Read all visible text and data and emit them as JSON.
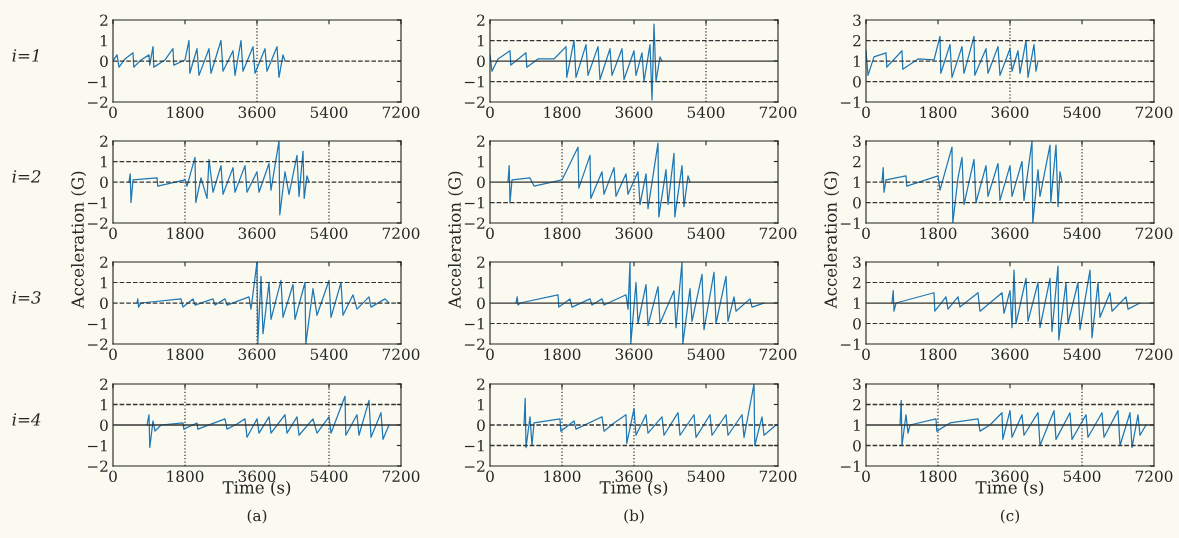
{
  "chart_data": [
    {
      "type": "line",
      "annotations": [
        "i=1"
      ],
      "xlim": [
        0,
        7200
      ],
      "xticks": [
        0,
        1800,
        3600,
        5400,
        7200
      ],
      "ylim": [
        -2,
        2
      ],
      "yticks": [
        -2,
        -1,
        0,
        1,
        2
      ],
      "grid": false,
      "marker": "none",
      "line_style": "solid",
      "ref_lines": [
        {
          "axis": "y",
          "value": 0,
          "line_style": "dashed",
          "color": "#333333"
        },
        {
          "axis": "x",
          "value": 3600,
          "line_style": "dotted",
          "color": "#333333"
        }
      ],
      "series": [
        {
          "color": "#1f77b4",
          "x": [
            0,
            100,
            150,
            300,
            500,
            520,
            700,
            900,
            920,
            1000,
            1020,
            1300,
            1500,
            1520,
            1800,
            1900,
            1920,
            2100,
            2150,
            2400,
            2450,
            2700,
            2750,
            3000,
            3050,
            3200,
            3250,
            3500,
            3550,
            3800,
            3850,
            4100,
            4150,
            4250,
            4300
          ],
          "values": [
            0,
            0.3,
            -0.3,
            0.1,
            0.4,
            -0.3,
            0.05,
            0.3,
            -0.2,
            0.7,
            -0.3,
            0.05,
            0.6,
            -0.2,
            0.05,
            1.0,
            -0.6,
            0.6,
            -0.7,
            0.6,
            -0.6,
            1.0,
            -0.5,
            0.5,
            -0.7,
            1.0,
            -0.5,
            0.7,
            -0.6,
            0.6,
            -0.5,
            0.7,
            -0.8,
            0.3,
            0
          ]
        }
      ]
    },
    {
      "type": "line",
      "xlim": [
        0,
        7200
      ],
      "xticks": [
        0,
        1800,
        3600,
        5400,
        7200
      ],
      "ylim": [
        -2,
        2
      ],
      "yticks": [
        -2,
        -1,
        0,
        1,
        2
      ],
      "grid": false,
      "marker": "none",
      "line_style": "solid",
      "ref_lines": [
        {
          "axis": "y",
          "value": 1,
          "line_style": "dashed",
          "color": "#333333"
        },
        {
          "axis": "y",
          "value": -1,
          "line_style": "dashed",
          "color": "#333333"
        },
        {
          "axis": "y",
          "value": 0,
          "line_style": "solid",
          "color": "#333333"
        },
        {
          "axis": "x",
          "value": 5400,
          "line_style": "dotted",
          "color": "#333333"
        }
      ],
      "series": [
        {
          "color": "#1f77b4",
          "x": [
            0,
            50,
            200,
            500,
            520,
            900,
            920,
            1200,
            1600,
            1900,
            1920,
            2100,
            2150,
            2400,
            2450,
            2700,
            2750,
            3000,
            3050,
            3300,
            3350,
            3600,
            3650,
            3800,
            3850,
            4000,
            4050,
            4100,
            4150,
            4250,
            4300
          ],
          "values": [
            0.3,
            -0.5,
            0.1,
            0.5,
            -0.2,
            0.4,
            -0.3,
            0.1,
            0.1,
            0.7,
            -0.8,
            1.0,
            -0.8,
            0.8,
            -0.7,
            0.7,
            -0.9,
            0.6,
            -0.7,
            0.6,
            -0.9,
            0.5,
            -0.7,
            0.4,
            -1.0,
            0.8,
            -1.9,
            1.8,
            -1.0,
            0.2,
            0
          ]
        }
      ]
    },
    {
      "type": "line",
      "xlim": [
        0,
        7200
      ],
      "xticks": [
        0,
        1800,
        3600,
        5400,
        7200
      ],
      "ylim": [
        -1,
        3
      ],
      "yticks": [
        -1,
        0,
        1,
        2,
        3
      ],
      "grid": false,
      "marker": "none",
      "line_style": "solid",
      "ref_lines": [
        {
          "axis": "y",
          "value": 2,
          "line_style": "dashed",
          "color": "#333333"
        },
        {
          "axis": "y",
          "value": 1,
          "line_style": "dashed",
          "color": "#333333"
        },
        {
          "axis": "y",
          "value": 0,
          "line_style": "dashed",
          "color": "#333333"
        },
        {
          "axis": "x",
          "value": 3600,
          "line_style": "dotted",
          "color": "#333333"
        }
      ],
      "series": [
        {
          "color": "#1f77b4",
          "x": [
            0,
            50,
            200,
            500,
            520,
            900,
            920,
            1300,
            1700,
            1850,
            1870,
            2100,
            2150,
            2400,
            2450,
            2700,
            2720,
            3000,
            3050,
            3300,
            3350,
            3600,
            3650,
            3800,
            3850,
            4000,
            4050,
            4200,
            4250,
            4300
          ],
          "values": [
            1.5,
            0.3,
            1.2,
            1.4,
            0.7,
            1.5,
            0.6,
            1.1,
            1.05,
            2.2,
            0.4,
            1.8,
            0.2,
            1.7,
            0.4,
            2.2,
            0.3,
            1.6,
            0.4,
            1.7,
            0.3,
            1.6,
            0.5,
            1.5,
            0.4,
            2.0,
            0.2,
            1.8,
            0.5,
            1.0
          ]
        }
      ]
    },
    {
      "type": "line",
      "annotations": [
        "i=2"
      ],
      "ylabel": "Acceleration (G)",
      "xlim": [
        0,
        7200
      ],
      "xticks": [
        0,
        1800,
        3600,
        5400,
        7200
      ],
      "ylim": [
        -2,
        2
      ],
      "yticks": [
        -2,
        -1,
        0,
        1,
        2
      ],
      "grid": false,
      "marker": "none",
      "line_style": "solid",
      "ref_lines": [
        {
          "axis": "y",
          "value": 1,
          "line_style": "dashed",
          "color": "#333333"
        },
        {
          "axis": "y",
          "value": 0,
          "line_style": "dashed",
          "color": "#333333"
        },
        {
          "axis": "x",
          "value": 1800,
          "line_style": "dotted",
          "color": "#333333"
        },
        {
          "axis": "x",
          "value": 5400,
          "line_style": "dotted",
          "color": "#333333"
        }
      ],
      "series": [
        {
          "color": "#1f77b4",
          "x": [
            400,
            430,
            450,
            500,
            1100,
            1120,
            1800,
            1850,
            2050,
            2070,
            2200,
            2350,
            2400,
            2500,
            2700,
            2750,
            3000,
            3050,
            3300,
            3350,
            3600,
            3650,
            3900,
            3950,
            4150,
            4170,
            4300,
            4400,
            4600,
            4650,
            4750,
            4780,
            4850,
            4900
          ],
          "values": [
            0,
            0.4,
            -1.0,
            0.1,
            0.2,
            -0.2,
            0.1,
            -0.2,
            1.2,
            -1.0,
            0.2,
            -0.8,
            1.1,
            -0.5,
            0.8,
            -0.6,
            0.7,
            -0.5,
            0.8,
            -0.5,
            0.5,
            -0.5,
            0.9,
            -0.4,
            2.0,
            -1.6,
            0.5,
            -0.6,
            1.3,
            -0.7,
            1.5,
            -0.8,
            0.3,
            0
          ]
        }
      ]
    },
    {
      "type": "line",
      "ylabel": "Acceleration (G)",
      "xlim": [
        0,
        7200
      ],
      "xticks": [
        0,
        1800,
        3600,
        5400,
        7200
      ],
      "ylim": [
        -2,
        2
      ],
      "yticks": [
        -2,
        -1,
        0,
        1,
        2
      ],
      "grid": false,
      "marker": "none",
      "line_style": "solid",
      "ref_lines": [
        {
          "axis": "y",
          "value": 0,
          "line_style": "solid",
          "color": "#333333"
        },
        {
          "axis": "y",
          "value": -1,
          "line_style": "dashed",
          "color": "#333333"
        },
        {
          "axis": "x",
          "value": 1800,
          "line_style": "dotted",
          "color": "#333333"
        },
        {
          "axis": "x",
          "value": 3600,
          "line_style": "dotted",
          "color": "#333333"
        }
      ],
      "series": [
        {
          "color": "#1f77b4",
          "x": [
            450,
            480,
            500,
            550,
            1000,
            1100,
            1800,
            2200,
            2220,
            2500,
            2520,
            2800,
            2850,
            3100,
            3150,
            3400,
            3450,
            3700,
            3750,
            3900,
            3950,
            4200,
            4220,
            4400,
            4450,
            4600,
            4620,
            4800,
            4850,
            4950,
            5000
          ],
          "values": [
            0,
            0.8,
            -1.0,
            0.1,
            0.2,
            -0.2,
            0.1,
            1.7,
            -0.3,
            1.3,
            -0.8,
            0.5,
            -0.6,
            0.7,
            -0.7,
            0.4,
            -0.6,
            0.5,
            -1.1,
            0.4,
            -1.3,
            1.9,
            -1.7,
            0.6,
            -1.1,
            1.4,
            -1.7,
            0.8,
            -1.2,
            0.3,
            0
          ]
        }
      ]
    },
    {
      "type": "line",
      "ylabel": "Acceleration (G)",
      "xlim": [
        0,
        7200
      ],
      "xticks": [
        0,
        1800,
        3600,
        5400,
        7200
      ],
      "ylim": [
        -1,
        3
      ],
      "yticks": [
        -1,
        0,
        1,
        2,
        3
      ],
      "grid": false,
      "marker": "none",
      "line_style": "solid",
      "ref_lines": [
        {
          "axis": "y",
          "value": 1,
          "line_style": "dashed",
          "color": "#333333"
        },
        {
          "axis": "y",
          "value": 0,
          "line_style": "dashed",
          "color": "#333333"
        },
        {
          "axis": "x",
          "value": 1800,
          "line_style": "dotted",
          "color": "#333333"
        },
        {
          "axis": "x",
          "value": 5400,
          "line_style": "dotted",
          "color": "#333333"
        }
      ],
      "series": [
        {
          "color": "#1f77b4",
          "x": [
            400,
            430,
            450,
            500,
            1000,
            1020,
            1800,
            1850,
            2150,
            2170,
            2300,
            2400,
            2450,
            2700,
            2750,
            3000,
            3050,
            3300,
            3350,
            3600,
            3650,
            3900,
            3950,
            4150,
            4170,
            4300,
            4350,
            4600,
            4620,
            4750,
            4800,
            4850,
            4900
          ],
          "values": [
            1.0,
            1.7,
            0.5,
            1.1,
            1.3,
            0.8,
            1.3,
            0.6,
            2.7,
            -1.0,
            1.2,
            2.2,
            -0.1,
            2.1,
            0.0,
            1.8,
            0.3,
            1.9,
            0.1,
            1.8,
            0.3,
            2.0,
            0.1,
            3.0,
            -1.0,
            1.6,
            0.3,
            2.8,
            0.0,
            2.8,
            -0.2,
            1.5,
            1.0
          ]
        }
      ]
    },
    {
      "type": "line",
      "annotations": [
        "i=3"
      ],
      "xlim": [
        0,
        7200
      ],
      "xticks": [
        0,
        1800,
        3600,
        5400,
        7200
      ],
      "ylim": [
        -2,
        2
      ],
      "yticks": [
        -2,
        -1,
        0,
        1,
        2
      ],
      "grid": false,
      "marker": "none",
      "line_style": "solid",
      "ref_lines": [
        {
          "axis": "y",
          "value": 1,
          "line_style": "dashed",
          "color": "#333333"
        },
        {
          "axis": "y",
          "value": 0,
          "line_style": "dashed",
          "color": "#333333"
        },
        {
          "axis": "x",
          "value": 3600,
          "line_style": "dotted",
          "color": "#333333"
        }
      ],
      "series": [
        {
          "color": "#1f77b4",
          "x": [
            600,
            620,
            640,
            700,
            1700,
            1750,
            2000,
            2050,
            2500,
            2550,
            2800,
            2850,
            3400,
            3450,
            3600,
            3620,
            3700,
            3750,
            3900,
            3950,
            4200,
            4250,
            4500,
            4550,
            4800,
            4820,
            5000,
            5100,
            5400,
            5450,
            5700,
            5750,
            6000,
            6100,
            6400,
            6450,
            6800,
            6900
          ],
          "values": [
            0,
            0.2,
            -0.2,
            0,
            0.2,
            -0.2,
            0.2,
            -0.1,
            0.2,
            -0.1,
            0.2,
            -0.1,
            0.3,
            -0.3,
            2.0,
            -2.0,
            1.3,
            -1.5,
            1.0,
            -0.8,
            1.1,
            -0.7,
            0.9,
            -0.8,
            1.0,
            -2.0,
            0.7,
            -0.6,
            1.1,
            -0.7,
            1.0,
            -0.6,
            0.4,
            -0.3,
            0.3,
            -0.2,
            0.2,
            0
          ]
        }
      ]
    },
    {
      "type": "line",
      "xlim": [
        0,
        7200
      ],
      "xticks": [
        0,
        1800,
        3600,
        5400,
        7200
      ],
      "ylim": [
        -2,
        2
      ],
      "yticks": [
        -2,
        -1,
        0,
        1,
        2
      ],
      "grid": false,
      "marker": "none",
      "line_style": "solid",
      "ref_lines": [
        {
          "axis": "y",
          "value": 0,
          "line_style": "solid",
          "color": "#333333"
        },
        {
          "axis": "y",
          "value": -1,
          "line_style": "dashed",
          "color": "#333333"
        }
      ],
      "series": [
        {
          "color": "#1f77b4",
          "x": [
            650,
            680,
            700,
            750,
            1700,
            1720,
            2000,
            2050,
            2500,
            2550,
            2800,
            2850,
            3400,
            3450,
            3500,
            3520,
            3650,
            3700,
            3900,
            3950,
            4200,
            4250,
            4600,
            4650,
            4800,
            4820,
            5000,
            5050,
            5300,
            5350,
            5600,
            5650,
            5900,
            5950,
            6100,
            6150,
            6500,
            6550,
            6850
          ],
          "values": [
            0,
            0.3,
            -0.1,
            0,
            0.4,
            -0.2,
            0.2,
            -0.2,
            0.2,
            -0.1,
            0.2,
            -0.1,
            0.4,
            -0.3,
            2.0,
            -2.0,
            1.0,
            -1.0,
            0.9,
            -1.1,
            0.8,
            -1.0,
            0.6,
            -1.2,
            2.0,
            -2.0,
            0.7,
            -0.9,
            1.4,
            -1.3,
            1.5,
            -1.0,
            1.3,
            -0.9,
            0.3,
            -0.4,
            0.2,
            -0.2,
            0
          ]
        }
      ]
    },
    {
      "type": "line",
      "xlim": [
        0,
        7200
      ],
      "xticks": [
        0,
        1800,
        3600,
        5400,
        7200
      ],
      "ylim": [
        -1,
        3
      ],
      "yticks": [
        -1,
        0,
        1,
        2,
        3
      ],
      "grid": false,
      "marker": "none",
      "line_style": "solid",
      "ref_lines": [
        {
          "axis": "y",
          "value": 2,
          "line_style": "dashed",
          "color": "#333333"
        },
        {
          "axis": "y",
          "value": 1,
          "line_style": "solid",
          "color": "#333333"
        },
        {
          "axis": "y",
          "value": 0,
          "line_style": "dashed",
          "color": "#333333"
        }
      ],
      "series": [
        {
          "color": "#1f77b4",
          "x": [
            650,
            680,
            700,
            750,
            1700,
            1720,
            2000,
            2050,
            2300,
            2350,
            2800,
            2850,
            3400,
            3450,
            3600,
            3650,
            3700,
            3750,
            4000,
            4050,
            4300,
            4350,
            4600,
            4650,
            4800,
            4820,
            5000,
            5050,
            5300,
            5350,
            5600,
            5650,
            5800,
            5850,
            6100,
            6150,
            6500,
            6550,
            6850
          ],
          "values": [
            1.0,
            1.6,
            0.6,
            1.0,
            1.5,
            0.6,
            1.3,
            0.7,
            1.3,
            0.8,
            1.5,
            0.6,
            1.5,
            0.5,
            1.6,
            -0.2,
            2.6,
            0.0,
            2.2,
            0.1,
            2.0,
            -0.2,
            2.2,
            -0.4,
            2.8,
            -0.8,
            2.0,
            0.0,
            2.0,
            -0.3,
            2.6,
            -0.7,
            2.0,
            0.3,
            1.5,
            0.6,
            1.3,
            0.7,
            1.0
          ]
        }
      ]
    },
    {
      "type": "line",
      "annotations": [
        "i=4",
        "(a)"
      ],
      "xlabel": "Time (s)",
      "xlim": [
        0,
        7200
      ],
      "xticks": [
        0,
        1800,
        3600,
        5400,
        7200
      ],
      "ylim": [
        -2,
        2
      ],
      "yticks": [
        -2,
        -1,
        0,
        1,
        2
      ],
      "grid": false,
      "marker": "none",
      "line_style": "solid",
      "ref_lines": [
        {
          "axis": "y",
          "value": 1,
          "line_style": "dashed",
          "color": "#333333"
        },
        {
          "axis": "y",
          "value": 0,
          "line_style": "solid",
          "color": "#333333"
        },
        {
          "axis": "x",
          "value": 1800,
          "line_style": "dotted",
          "color": "#333333"
        },
        {
          "axis": "x",
          "value": 5400,
          "line_style": "dotted",
          "color": "#333333"
        }
      ],
      "series": [
        {
          "color": "#1f77b4",
          "x": [
            850,
            900,
            920,
            1000,
            1050,
            1200,
            1750,
            1770,
            2100,
            2120,
            2800,
            2850,
            3100,
            3300,
            3350,
            3600,
            3650,
            3900,
            3950,
            4300,
            4350,
            4600,
            4650,
            5000,
            5100,
            5400,
            5450,
            5800,
            5820,
            6100,
            6150,
            6400,
            6450,
            6700,
            6750,
            6900
          ],
          "values": [
            0,
            0.5,
            -1.1,
            0.2,
            -0.3,
            0,
            0.1,
            -0.2,
            0.1,
            -0.2,
            0.3,
            -0.2,
            0.05,
            0.3,
            -0.6,
            0.3,
            -0.4,
            0.4,
            -0.4,
            0.5,
            -0.4,
            0.4,
            -0.5,
            0.3,
            -0.4,
            0.4,
            -0.4,
            1.4,
            -0.5,
            0.5,
            -0.5,
            1.2,
            -0.6,
            0.6,
            -0.7,
            0
          ]
        }
      ]
    },
    {
      "type": "line",
      "annotations": [
        "(b)"
      ],
      "xlabel": "Time (s)",
      "xlim": [
        0,
        7200
      ],
      "xticks": [
        0,
        1800,
        3600,
        5400,
        7200
      ],
      "ylim": [
        -2,
        2
      ],
      "yticks": [
        -2,
        -1,
        0,
        1,
        2
      ],
      "grid": false,
      "marker": "none",
      "line_style": "solid",
      "ref_lines": [
        {
          "axis": "y",
          "value": 0,
          "line_style": "dashed",
          "color": "#333333"
        },
        {
          "axis": "y",
          "value": -1,
          "line_style": "dashed",
          "color": "#333333"
        },
        {
          "axis": "x",
          "value": 1800,
          "line_style": "dotted",
          "color": "#333333"
        },
        {
          "axis": "x",
          "value": 3600,
          "line_style": "dotted",
          "color": "#333333"
        }
      ],
      "series": [
        {
          "color": "#1f77b4",
          "x": [
            850,
            880,
            900,
            1000,
            1050,
            1100,
            1750,
            1770,
            2100,
            2150,
            2800,
            2850,
            3100,
            3400,
            3420,
            3600,
            3650,
            3900,
            3950,
            4300,
            4350,
            4700,
            4750,
            5100,
            5150,
            5500,
            5550,
            5900,
            5950,
            6300,
            6350,
            6600,
            6620,
            6800,
            6850,
            7150
          ],
          "values": [
            0,
            1.3,
            -1.1,
            0.4,
            -1.0,
            0.1,
            0.3,
            -0.3,
            0.2,
            -0.2,
            0.4,
            -0.3,
            0.1,
            0.5,
            -0.9,
            0.8,
            -0.5,
            0.5,
            -0.4,
            0.4,
            -0.5,
            0.6,
            -0.5,
            0.5,
            -0.6,
            0.5,
            -0.5,
            0.5,
            -0.5,
            0.5,
            -0.6,
            2.0,
            -1.0,
            0.4,
            -0.5,
            0
          ]
        }
      ]
    },
    {
      "type": "line",
      "annotations": [
        "(c)"
      ],
      "xlabel": "Time (s)",
      "xlim": [
        0,
        7200
      ],
      "xticks": [
        0,
        1800,
        3600,
        5400,
        7200
      ],
      "ylim": [
        -1,
        3
      ],
      "yticks": [
        -1,
        0,
        1,
        2,
        3
      ],
      "grid": false,
      "marker": "none",
      "line_style": "solid",
      "ref_lines": [
        {
          "axis": "y",
          "value": 2,
          "line_style": "dashed",
          "color": "#333333"
        },
        {
          "axis": "y",
          "value": 1,
          "line_style": "solid",
          "color": "#333333"
        },
        {
          "axis": "y",
          "value": 0,
          "line_style": "dashed",
          "color": "#333333"
        },
        {
          "axis": "x",
          "value": 1800,
          "line_style": "dotted",
          "color": "#333333"
        },
        {
          "axis": "x",
          "value": 5400,
          "line_style": "dotted",
          "color": "#333333"
        }
      ],
      "series": [
        {
          "color": "#1f77b4",
          "x": [
            850,
            880,
            900,
            1000,
            1050,
            1100,
            1750,
            1770,
            2100,
            2800,
            2850,
            3100,
            3400,
            3420,
            3600,
            3650,
            3900,
            3950,
            4300,
            4350,
            4700,
            4750,
            5100,
            5150,
            5500,
            5550,
            5900,
            5950,
            6300,
            6350,
            6600,
            6650,
            6800,
            6850,
            7000
          ],
          "values": [
            1.0,
            2.2,
            0.0,
            1.5,
            0.6,
            1.0,
            1.3,
            0.7,
            1.1,
            1.3,
            0.7,
            1.0,
            1.6,
            0.3,
            1.7,
            0.4,
            1.5,
            0.5,
            1.6,
            0.0,
            1.7,
            0.3,
            1.6,
            0.3,
            1.5,
            0.4,
            1.6,
            0.4,
            1.7,
            0.0,
            1.6,
            -0.1,
            1.5,
            0.5,
            1.0
          ]
        }
      ]
    }
  ]
}
